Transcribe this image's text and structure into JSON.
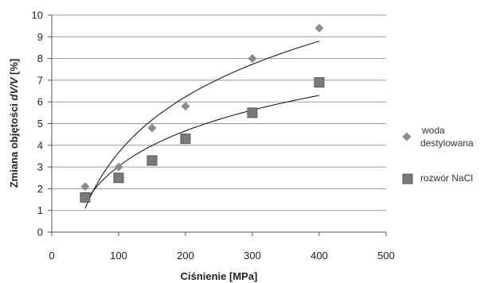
{
  "chart_data": {
    "type": "scatter",
    "xlabel": "Ciśnienie [MPa]",
    "ylabel": "Zmiana objętości dV/V [%]",
    "xlim": [
      0,
      500
    ],
    "ylim": [
      0,
      10
    ],
    "x_ticks": [
      "0",
      "100",
      "200",
      "300",
      "400",
      "500"
    ],
    "y_ticks": [
      "0",
      "1",
      "2",
      "3",
      "4",
      "5",
      "6",
      "7",
      "8",
      "9",
      "10"
    ],
    "grid": "horizontal",
    "legend_position": "right",
    "series": [
      {
        "name": "woda destylowana",
        "legend_lines": [
          "woda",
          "destylowana"
        ],
        "marker": "diamond",
        "color": "#8c8c8c",
        "x": [
          50,
          100,
          150,
          200,
          300,
          400
        ],
        "y": [
          2.1,
          3.0,
          4.8,
          5.8,
          8.0,
          9.4
        ],
        "trendline": {
          "type": "logarithmic",
          "x_from": 50,
          "x_to": 400,
          "y_from": 1.1,
          "y_to": 8.8
        }
      },
      {
        "name": "rozwór NaCl",
        "legend_lines": [
          "rozwór NaCl"
        ],
        "marker": "square",
        "color": "#7a7a7a",
        "x": [
          50,
          100,
          150,
          200,
          300,
          400
        ],
        "y": [
          1.6,
          2.5,
          3.3,
          4.3,
          5.5,
          6.9
        ],
        "trendline": {
          "type": "logarithmic",
          "x_from": 50,
          "x_to": 400,
          "y_from": 1.4,
          "y_to": 6.3
        }
      }
    ]
  }
}
